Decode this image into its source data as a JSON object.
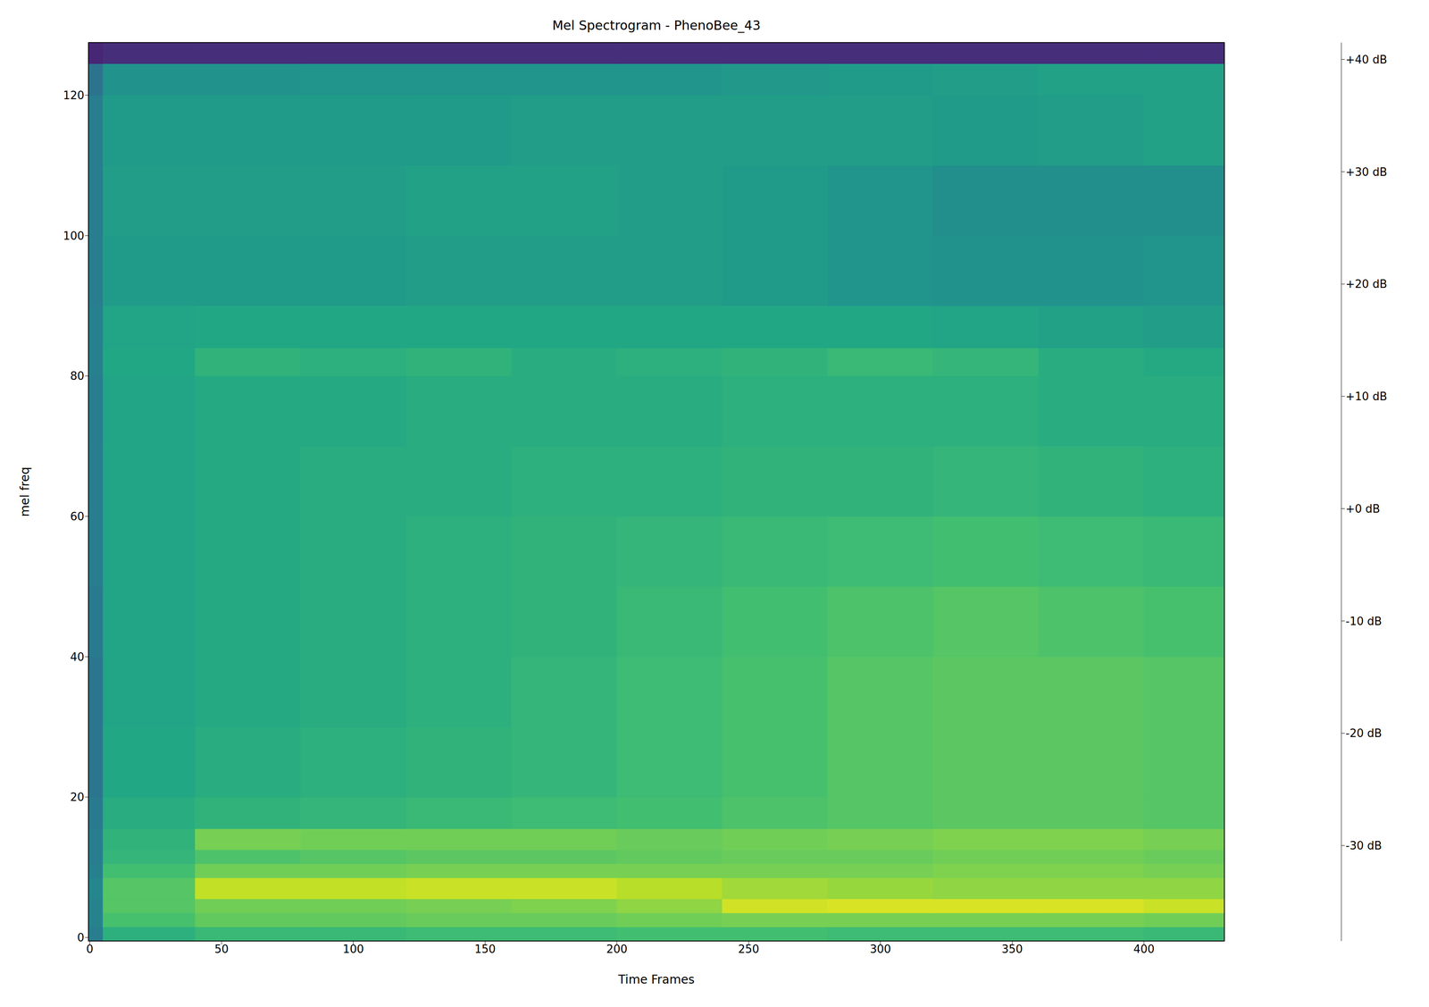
{
  "chart_data": {
    "type": "heatmap",
    "title": "Mel Spectrogram - PhenoBee_43",
    "x_label": "Time Frames",
    "y_label": "mel freq",
    "xlim": [
      -0.5,
      430.5
    ],
    "ylim": [
      -0.5,
      127.5
    ],
    "xticks": [
      0,
      50,
      100,
      150,
      200,
      250,
      300,
      350,
      400
    ],
    "yticks": [
      0,
      20,
      40,
      60,
      80,
      100,
      120
    ],
    "x_edges": [
      -0.5,
      5,
      40,
      80,
      120,
      160,
      200,
      240,
      280,
      320,
      360,
      400,
      430.5
    ],
    "y_edges": [
      -0.5,
      1.5,
      3.5,
      5.5,
      8.5,
      10.5,
      12.5,
      15.5,
      20,
      30,
      40,
      50,
      60,
      70,
      80,
      84,
      90,
      100,
      110,
      120,
      124.5,
      127.5
    ],
    "cells": [
      [
        -5,
        12,
        15,
        15,
        16,
        16,
        17,
        17,
        16,
        16,
        16,
        15
      ],
      [
        -3,
        18,
        22,
        22,
        23,
        23,
        24,
        25,
        25,
        25,
        25,
        24
      ],
      [
        -3,
        20,
        24,
        24,
        25,
        26,
        28,
        36,
        37,
        37,
        37,
        35
      ],
      [
        -2,
        20,
        34,
        34,
        35,
        35,
        33,
        30,
        29,
        28,
        28,
        28
      ],
      [
        -4,
        17,
        24,
        24,
        25,
        25,
        25,
        25,
        25,
        26,
        26,
        25
      ],
      [
        -5,
        14,
        19,
        20,
        21,
        21,
        22,
        23,
        23,
        24,
        24,
        23
      ],
      [
        -5,
        13,
        25,
        24,
        24,
        24,
        23,
        24,
        25,
        26,
        26,
        25
      ],
      [
        -6,
        11,
        13,
        14,
        15,
        16,
        17,
        19,
        20,
        21,
        21,
        20
      ],
      [
        -7,
        9,
        11,
        12,
        13,
        14,
        16,
        18,
        20,
        21,
        21,
        20
      ],
      [
        -7,
        8,
        10,
        11,
        12,
        14,
        16,
        18,
        20,
        21,
        21,
        20
      ],
      [
        -6,
        8,
        10,
        11,
        12,
        13,
        15,
        17,
        19,
        20,
        19,
        18
      ],
      [
        -5,
        8,
        10,
        11,
        12,
        13,
        14,
        15,
        16,
        17,
        16,
        15
      ],
      [
        -5,
        8,
        10,
        11,
        11,
        12,
        12,
        13,
        13,
        14,
        13,
        12
      ],
      [
        -5,
        8,
        10,
        10,
        11,
        11,
        11,
        12,
        12,
        12,
        11,
        11
      ],
      [
        -4,
        9,
        13,
        12,
        13,
        11,
        12,
        13,
        15,
        14,
        11,
        10
      ],
      [
        -4,
        8,
        9,
        9,
        9,
        9,
        9,
        9,
        9,
        8,
        7,
        6
      ],
      [
        -5,
        5,
        5,
        5,
        6,
        6,
        6,
        5,
        3,
        2,
        2,
        3
      ],
      [
        -5,
        6,
        6,
        6,
        7,
        7,
        6,
        5,
        3,
        1,
        1,
        1
      ],
      [
        -5,
        5,
        5,
        5,
        5,
        6,
        6,
        6,
        6,
        5,
        6,
        7
      ],
      [
        -8,
        2,
        2,
        3,
        3,
        3,
        3,
        4,
        5,
        6,
        7,
        7
      ],
      [
        -30,
        -28,
        -28,
        -28,
        -28,
        -28,
        -28,
        -28,
        -28,
        -28,
        -28,
        -28
      ]
    ],
    "colorbar": {
      "range": [
        -38.5,
        41.5
      ],
      "ticks": [
        {
          "value": -30,
          "label": "-30 dB"
        },
        {
          "value": -20,
          "label": "-20 dB"
        },
        {
          "value": -10,
          "label": "-10 dB"
        },
        {
          "value": 0,
          "label": "+0 dB"
        },
        {
          "value": 10,
          "label": "+10 dB"
        },
        {
          "value": 20,
          "label": "+20 dB"
        },
        {
          "value": 30,
          "label": "+30 dB"
        },
        {
          "value": 40,
          "label": "+40 dB"
        }
      ]
    }
  }
}
